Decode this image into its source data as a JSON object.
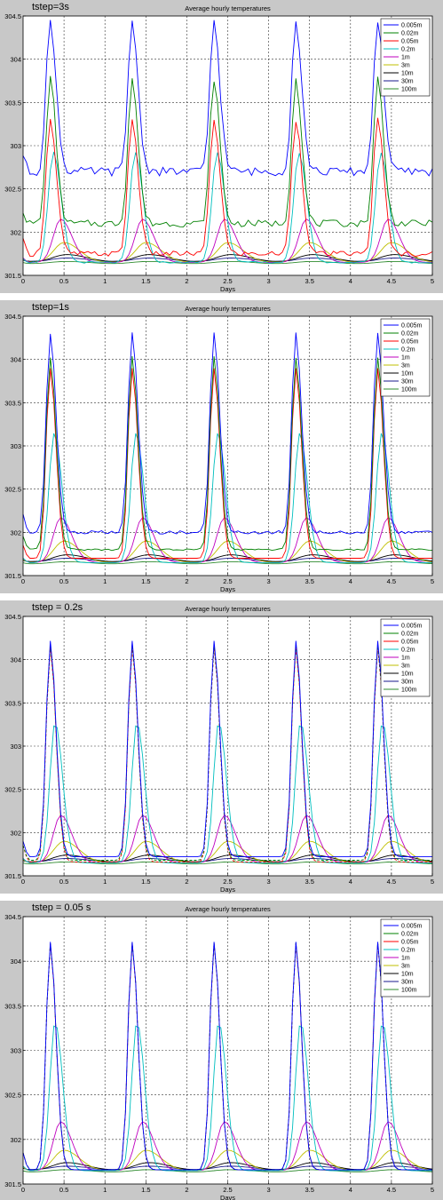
{
  "panels": [
    {
      "label": "tstep=3s"
    },
    {
      "label": "tstep=1s"
    },
    {
      "label": "tstep = 0.2s"
    },
    {
      "label": "tstep = 0.05 s"
    }
  ],
  "legend_order": [
    "0.005m",
    "0.02m",
    "0.05m",
    "0.2m",
    "1m",
    "3m",
    "10m",
    "30m",
    "100m"
  ],
  "colors": {
    "0.005m": "#0000ff",
    "0.02m": "#008000",
    "0.05m": "#ff0000",
    "0.2m": "#00bfbf",
    "1m": "#bf00bf",
    "3m": "#bfbf00",
    "10m": "#000000",
    "30m": "#1a1a8c",
    "100m": "#2e8b2e"
  },
  "chart_data": [
    {
      "type": "line",
      "title": "Average hourly temperatures",
      "xlabel": "Days",
      "ylabel": "",
      "xlim": [
        0,
        5
      ],
      "ylim": [
        301.5,
        304.5
      ],
      "x_ticks": [
        "0",
        "0.5",
        "1",
        "1.5",
        "2",
        "2.5",
        "3",
        "3.5",
        "4",
        "4.5",
        "5"
      ],
      "y_ticks": [
        "301.5",
        "302",
        "302.5",
        "303",
        "303.5",
        "304",
        "304.5"
      ],
      "grid": true,
      "legend": "top-right",
      "peak_time": 0.33,
      "series": [
        {
          "name": "0.005m",
          "base": 302.7,
          "start": 302.9,
          "peak": 304.45,
          "width": 0.085,
          "lag": 0.0,
          "noise": 0.05
        },
        {
          "name": "0.02m",
          "base": 302.1,
          "start": 302.25,
          "peak": 303.78,
          "width": 0.085,
          "lag": 0.0,
          "noise": 0.04
        },
        {
          "name": "0.05m",
          "base": 301.75,
          "start": 301.9,
          "peak": 303.3,
          "width": 0.09,
          "lag": 0.0,
          "noise": 0.03
        },
        {
          "name": "0.2m",
          "base": 301.65,
          "start": 301.7,
          "peak": 302.92,
          "width": 0.11,
          "lag": 0.04,
          "noise": 0.01
        },
        {
          "name": "1m",
          "base": 301.65,
          "start": 301.7,
          "peak": 302.15,
          "width": 0.16,
          "lag": 0.13,
          "noise": 0.0
        },
        {
          "name": "3m",
          "base": 301.65,
          "start": 301.68,
          "peak": 301.88,
          "width": 0.22,
          "lag": 0.17,
          "noise": 0.0
        },
        {
          "name": "10m",
          "base": 301.65,
          "start": 301.66,
          "peak": 301.74,
          "width": 0.3,
          "lag": 0.2,
          "noise": 0.0
        },
        {
          "name": "30m",
          "base": 301.65,
          "start": 301.66,
          "peak": 301.7,
          "width": 0.35,
          "lag": 0.2,
          "noise": 0.0
        },
        {
          "name": "100m",
          "base": 301.62,
          "start": 301.63,
          "peak": 301.66,
          "width": 0.4,
          "lag": 0.2,
          "noise": 0.0
        }
      ]
    },
    {
      "type": "line",
      "title": "Average hourly temperatures",
      "xlabel": "Days",
      "ylabel": "",
      "xlim": [
        0,
        5
      ],
      "ylim": [
        301.5,
        304.5
      ],
      "x_ticks": [
        "0",
        "0.5",
        "1",
        "1.5",
        "2",
        "2.5",
        "3",
        "3.5",
        "4",
        "4.5",
        "5"
      ],
      "y_ticks": [
        "301.5",
        "302",
        "302.5",
        "303",
        "303.5",
        "304",
        "304.5"
      ],
      "grid": true,
      "legend": "top-right",
      "peak_time": 0.33,
      "series": [
        {
          "name": "0.005m",
          "base": 302.0,
          "start": 302.2,
          "peak": 304.3,
          "width": 0.085,
          "lag": 0.0,
          "noise": 0.02
        },
        {
          "name": "0.02m",
          "base": 301.8,
          "start": 301.95,
          "peak": 304.03,
          "width": 0.085,
          "lag": 0.0,
          "noise": 0.01
        },
        {
          "name": "0.05m",
          "base": 301.7,
          "start": 301.85,
          "peak": 303.9,
          "width": 0.085,
          "lag": 0.0,
          "noise": 0.0
        },
        {
          "name": "0.2m",
          "base": 301.65,
          "start": 301.7,
          "peak": 303.15,
          "width": 0.11,
          "lag": 0.05,
          "noise": 0.0
        },
        {
          "name": "1m",
          "base": 301.65,
          "start": 301.7,
          "peak": 302.17,
          "width": 0.16,
          "lag": 0.13,
          "noise": 0.0
        },
        {
          "name": "3m",
          "base": 301.65,
          "start": 301.68,
          "peak": 301.9,
          "width": 0.22,
          "lag": 0.17,
          "noise": 0.0
        },
        {
          "name": "10m",
          "base": 301.65,
          "start": 301.66,
          "peak": 301.74,
          "width": 0.3,
          "lag": 0.2,
          "noise": 0.0
        },
        {
          "name": "30m",
          "base": 301.65,
          "start": 301.66,
          "peak": 301.7,
          "width": 0.35,
          "lag": 0.2,
          "noise": 0.0
        },
        {
          "name": "100m",
          "base": 301.62,
          "start": 301.63,
          "peak": 301.66,
          "width": 0.4,
          "lag": 0.2,
          "noise": 0.0
        }
      ]
    },
    {
      "type": "line",
      "title": "Average hourly temperatures",
      "xlabel": "Days",
      "ylabel": "",
      "xlim": [
        0,
        5
      ],
      "ylim": [
        301.5,
        304.5
      ],
      "x_ticks": [
        "0",
        "0.5",
        "1",
        "1.5",
        "2",
        "2.5",
        "3",
        "3.5",
        "4",
        "4.5",
        "5"
      ],
      "y_ticks": [
        "301.5",
        "302",
        "302.5",
        "303",
        "303.5",
        "304",
        "304.5"
      ],
      "grid": true,
      "legend": "top-right",
      "peak_time": 0.33,
      "series": [
        {
          "name": "0.005m",
          "base": 301.72,
          "start": 301.9,
          "peak": 304.22,
          "width": 0.085,
          "lag": 0.0,
          "noise": 0.0
        },
        {
          "name": "0.02m",
          "base": 301.68,
          "start": 301.85,
          "peak": 304.18,
          "width": 0.085,
          "lag": 0.0,
          "noise": 0.0
        },
        {
          "name": "0.05m",
          "base": 301.66,
          "start": 301.85,
          "peak": 304.15,
          "width": 0.085,
          "lag": 0.0,
          "noise": 0.0
        },
        {
          "name": "0.2m",
          "base": 301.65,
          "start": 301.7,
          "peak": 303.28,
          "width": 0.11,
          "lag": 0.06,
          "noise": 0.0
        },
        {
          "name": "1m",
          "base": 301.65,
          "start": 301.7,
          "peak": 302.2,
          "width": 0.16,
          "lag": 0.13,
          "noise": 0.0
        },
        {
          "name": "3m",
          "base": 301.65,
          "start": 301.68,
          "peak": 301.9,
          "width": 0.22,
          "lag": 0.17,
          "noise": 0.0
        },
        {
          "name": "10m",
          "base": 301.65,
          "start": 301.66,
          "peak": 301.74,
          "width": 0.3,
          "lag": 0.2,
          "noise": 0.0
        },
        {
          "name": "30m",
          "base": 301.65,
          "start": 301.66,
          "peak": 301.7,
          "width": 0.35,
          "lag": 0.2,
          "noise": 0.0
        },
        {
          "name": "100m",
          "base": 301.62,
          "start": 301.63,
          "peak": 301.66,
          "width": 0.4,
          "lag": 0.2,
          "noise": 0.0
        }
      ]
    },
    {
      "type": "line",
      "title": "Average hourly temperatures",
      "xlabel": "Days",
      "ylabel": "",
      "xlim": [
        0,
        5
      ],
      "ylim": [
        301.5,
        304.5
      ],
      "x_ticks": [
        "0",
        "0.5",
        "1",
        "1.5",
        "2",
        "2.5",
        "3",
        "3.5",
        "4",
        "4.5",
        "5"
      ],
      "y_ticks": [
        "301.5",
        "302",
        "302.5",
        "303",
        "303.5",
        "304",
        "304.5"
      ],
      "grid": true,
      "legend": "top-right",
      "peak_time": 0.33,
      "series": [
        {
          "name": "0.005m",
          "base": 301.66,
          "start": 301.85,
          "peak": 304.22,
          "width": 0.085,
          "lag": 0.0,
          "noise": 0.0
        },
        {
          "name": "0.02m",
          "base": 301.66,
          "start": 301.85,
          "peak": 304.21,
          "width": 0.085,
          "lag": 0.0,
          "noise": 0.0
        },
        {
          "name": "0.05m",
          "base": 301.66,
          "start": 301.85,
          "peak": 304.2,
          "width": 0.085,
          "lag": 0.0,
          "noise": 0.0
        },
        {
          "name": "0.2m",
          "base": 301.65,
          "start": 301.7,
          "peak": 303.32,
          "width": 0.11,
          "lag": 0.06,
          "noise": 0.0
        },
        {
          "name": "1m",
          "base": 301.65,
          "start": 301.7,
          "peak": 302.2,
          "width": 0.16,
          "lag": 0.13,
          "noise": 0.0
        },
        {
          "name": "3m",
          "base": 301.65,
          "start": 301.68,
          "peak": 301.88,
          "width": 0.22,
          "lag": 0.17,
          "noise": 0.0
        },
        {
          "name": "10m",
          "base": 301.65,
          "start": 301.66,
          "peak": 301.74,
          "width": 0.3,
          "lag": 0.2,
          "noise": 0.0
        },
        {
          "name": "30m",
          "base": 301.65,
          "start": 301.66,
          "peak": 301.7,
          "width": 0.35,
          "lag": 0.2,
          "noise": 0.0
        },
        {
          "name": "100m",
          "base": 301.62,
          "start": 301.63,
          "peak": 301.66,
          "width": 0.4,
          "lag": 0.2,
          "noise": 0.0
        }
      ]
    }
  ]
}
